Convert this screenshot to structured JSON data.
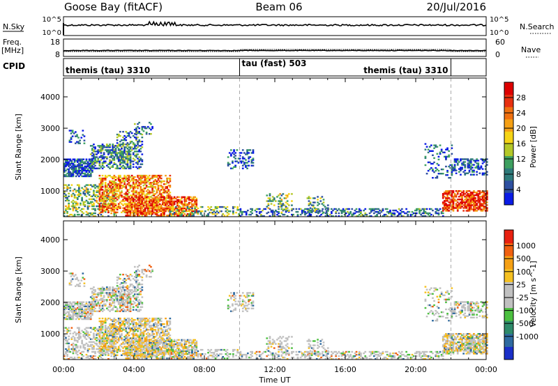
{
  "header": {
    "title_left": "Goose Bay (fitACF)",
    "title_center": "Beam 06",
    "title_right": "20/Jul/2016"
  },
  "top_panels": {
    "nsky_label": "N.Sky",
    "nsky_ticks": [
      "10^5",
      "10^0"
    ],
    "nsearch_label": "N.Search",
    "nsearch_ticks": [
      "10^5",
      "10^0"
    ],
    "freq_label": "Freq.",
    "freq_unit": "[MHz]",
    "freq_ticks": [
      "18",
      "8"
    ],
    "nave_label": "Nave",
    "nave_ticks": [
      "60",
      "0"
    ],
    "cpid_label": "CPID",
    "cpid_segments": [
      {
        "label": "themis (tau) 3310",
        "start": 0.0,
        "end": 10.0
      },
      {
        "label": "tau (fast) 503",
        "start": 10.0,
        "end": 22.0
      },
      {
        "label": "themis (tau) 3310",
        "start": 22.0,
        "end": 24.0
      }
    ],
    "cpid_boundaries": [
      10.0,
      22.0
    ]
  },
  "chart_data": [
    {
      "type": "heatmap",
      "name": "power",
      "ylabel": "Slant Range [km]",
      "ylim": [
        180,
        4600
      ],
      "yticks": [
        1000,
        2000,
        3000,
        4000
      ],
      "xlim": [
        0,
        24
      ],
      "colorbar_label": "Power [dB]",
      "colorbar_ticks": [
        "4",
        "8",
        "12",
        "16",
        "20",
        "24",
        "28"
      ],
      "colorbar_colors": [
        "#0a1be6",
        "#2d4fa0",
        "#2e7a7a",
        "#3ea060",
        "#b4c828",
        "#f5d416",
        "#f5a014",
        "#f07010",
        "#e83010",
        "#dd0000"
      ]
    },
    {
      "type": "heatmap",
      "name": "velocity",
      "ylabel": "Slant Range [km]",
      "ylim": [
        180,
        4600
      ],
      "yticks": [
        1000,
        2000,
        3000,
        4000
      ],
      "xlim": [
        0,
        24
      ],
      "xlabel": "Time UT",
      "xticks": [
        "00:00",
        "04:00",
        "08:00",
        "12:00",
        "16:00",
        "20:00",
        "00:00"
      ],
      "colorbar_label": "Velocity [m s^-1]",
      "colorbar_ticks": [
        "1000",
        "500",
        "100",
        "25",
        "-25",
        "-100",
        "-500",
        "-1000"
      ],
      "colorbar_colors": [
        "#1a2fc8",
        "#2e6aa0",
        "#2e8a6a",
        "#4cc040",
        "#c0c0c0",
        "#c0c0c0",
        "#f5c020",
        "#f5a014",
        "#f06010",
        "#e82010"
      ]
    }
  ]
}
